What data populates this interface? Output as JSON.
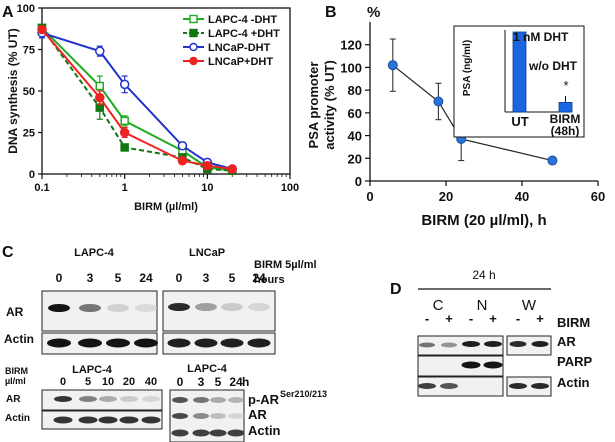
{
  "panels": {
    "a": {
      "letter": "A"
    },
    "b": {
      "letter": "B"
    },
    "c": {
      "letter": "C"
    },
    "d": {
      "letter": "D"
    }
  },
  "chart_data": [
    {
      "type": "line",
      "panel": "A",
      "x_scale": "log",
      "xlabel": "BIRM (µl/ml)",
      "ylabel": "DNA synthesis (% UT)",
      "xlim": [
        0.1,
        100
      ],
      "ylim": [
        0,
        100
      ],
      "x_ticks": [
        "0.1",
        "1",
        "10",
        "100"
      ],
      "y_ticks": [
        "0",
        "25",
        "50",
        "75",
        "100"
      ],
      "x": [
        0.1,
        0.5,
        1,
        5,
        10,
        20
      ],
      "legend_position": "top-right",
      "series": [
        {
          "name": "LAPC-4 -DHT",
          "values": [
            88,
            53,
            32,
            14,
            4,
            2
          ],
          "color": "#22aa22",
          "style": "solid",
          "marker": "open-square"
        },
        {
          "name": "LAPC-4 +DHT",
          "values": [
            88,
            40,
            16,
            10,
            3,
            2
          ],
          "color": "#117711",
          "style": "dashed",
          "marker": "filled-square"
        },
        {
          "name": "LNCaP-DHT",
          "values": [
            85,
            74,
            54,
            17,
            7,
            3
          ],
          "color": "#2233cc",
          "style": "solid",
          "marker": "open-circle"
        },
        {
          "name": "LNCaP+DHT",
          "values": [
            87,
            46,
            25,
            8,
            5,
            3
          ],
          "color": "#ee2222",
          "style": "solid",
          "marker": "filled-circle"
        }
      ]
    },
    {
      "type": "line",
      "panel": "B",
      "xlabel": "BIRM (20 µl/ml), h",
      "ylabel": "PSA promoter activity (% UT)",
      "y_unit": "%",
      "xlim": [
        0,
        60
      ],
      "ylim": [
        0,
        140
      ],
      "x_ticks": [
        "0",
        "20",
        "40",
        "60"
      ],
      "y_ticks": [
        "0",
        "20",
        "40",
        "60",
        "80",
        "100",
        "120"
      ],
      "x": [
        6,
        18,
        24,
        48
      ],
      "series": [
        {
          "values": [
            102,
            70,
            37,
            18
          ],
          "color": "#2a74d9"
        }
      ]
    },
    {
      "type": "bar",
      "panel": "B inset",
      "ylabel": "PSA (ng/ml)",
      "categories": [
        "UT",
        "BIRM (48h)"
      ],
      "values": [
        100,
        12
      ],
      "annotations": [
        "1 nM DHT",
        "w/o DHT",
        "*"
      ],
      "color": "#1a66e0"
    }
  ],
  "blots": {
    "c_top": {
      "cell_lines": [
        "LAPC-4",
        "LNCaP"
      ],
      "lanes": [
        "0",
        "3",
        "5",
        "24"
      ],
      "treatment": "BIRM 5µl/ml",
      "time_unit": "hours",
      "rows": [
        "AR",
        "Actin"
      ]
    },
    "c_bottom_left": {
      "treatment": "BIRM",
      "unit": "µl/ml",
      "cell_line": "LAPC-4",
      "lanes": [
        "0",
        "5",
        "10",
        "20",
        "40"
      ],
      "rows": [
        "AR",
        "Actin"
      ]
    },
    "c_bottom_right": {
      "cell_line": "LAPC-4",
      "lanes": [
        "0",
        "3",
        "5",
        "24"
      ],
      "time_unit": "h",
      "rows": [
        "p-AR",
        "AR",
        "Actin"
      ],
      "p_ar_superscript": "Ser210/213"
    },
    "d": {
      "time": "24 h",
      "fractions": [
        "C",
        "N",
        "W"
      ],
      "signs": [
        "-",
        "+",
        "-",
        "+",
        "-",
        "+"
      ],
      "treatment": "BIRM",
      "rows": [
        "AR",
        "PARP",
        "Actin"
      ]
    }
  }
}
